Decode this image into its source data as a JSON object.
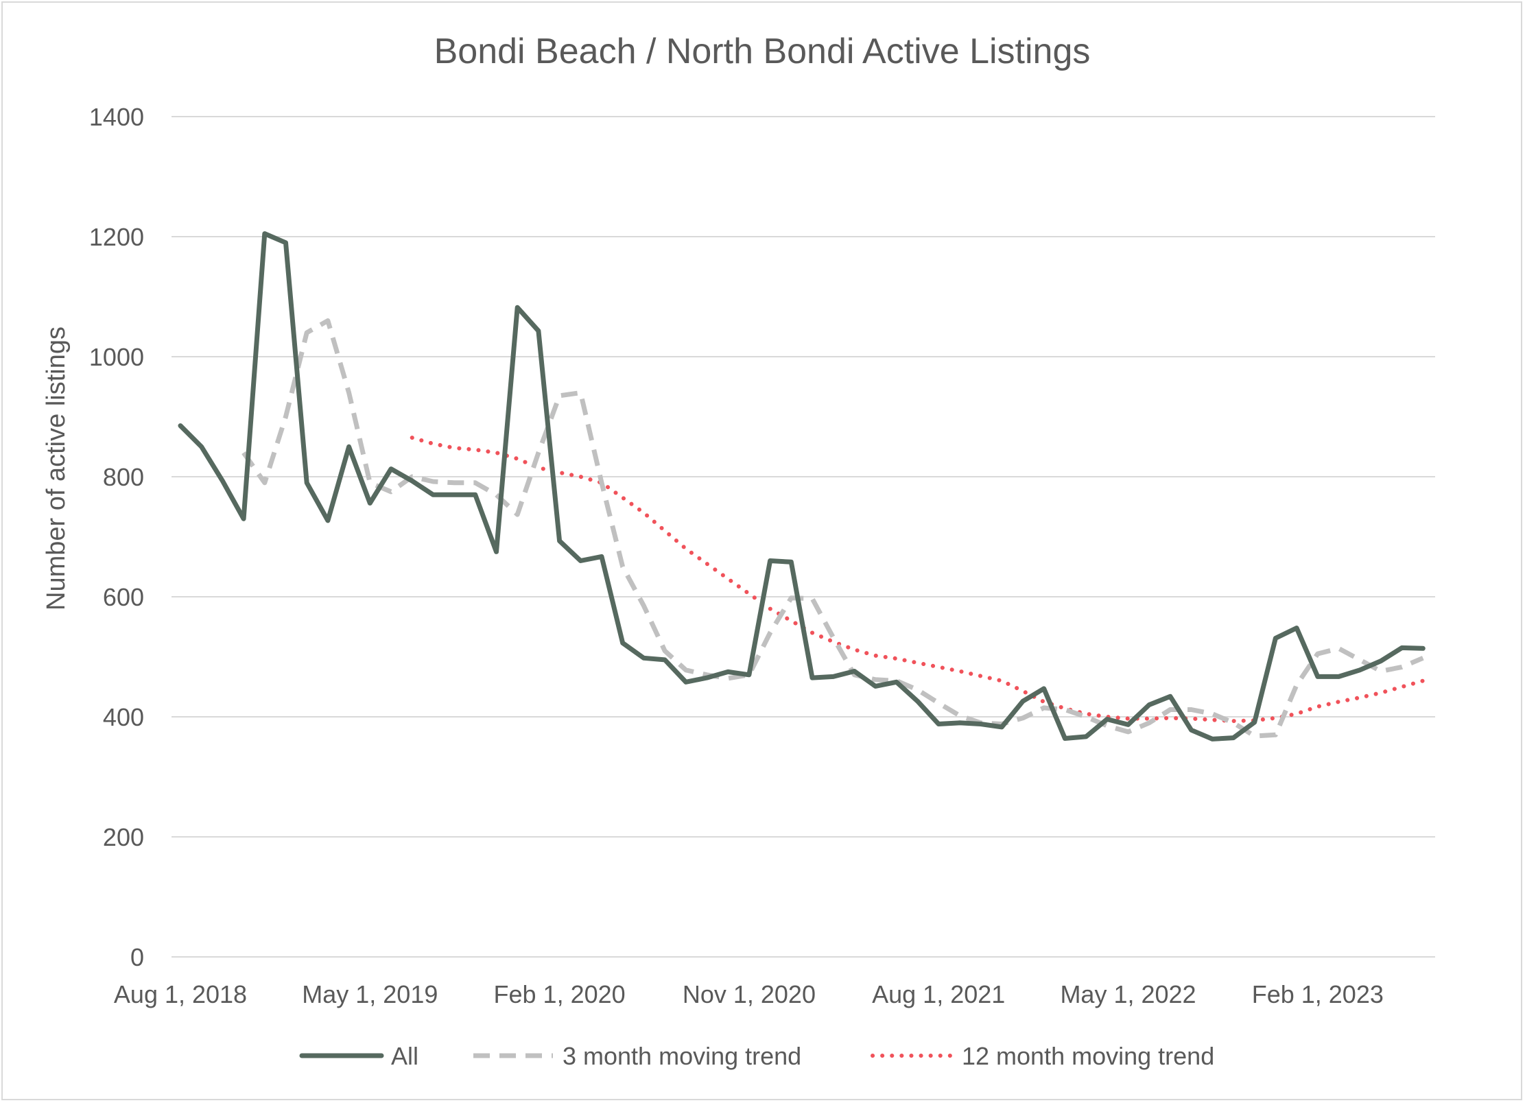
{
  "chart_data": {
    "type": "line",
    "title": "Bondi Beach / North Bondi Active Listings",
    "xlabel": "",
    "ylabel": "Number of active listings",
    "ylim": [
      0,
      1400
    ],
    "yticks": [
      0,
      200,
      400,
      600,
      800,
      1000,
      1200,
      1400
    ],
    "x_start": "Aug 1, 2018",
    "x_tick_labels": [
      "Aug 1, 2018",
      "May 1, 2019",
      "Feb 1, 2020",
      "Nov 1, 2020",
      "Aug 1, 2021",
      "May 1, 2022",
      "Feb 1, 2023"
    ],
    "grid": true,
    "legend_position": "bottom",
    "colors": {
      "All": "#56695f",
      "3 month moving trend": "#c0c0c0",
      "12 month moving trend": "#f0525a"
    },
    "series": [
      {
        "name": "All",
        "values": [
          885,
          850,
          793,
          730,
          1205,
          1190,
          790,
          727,
          850,
          756,
          813,
          793,
          770,
          770,
          770,
          675,
          1082,
          1043,
          693,
          660,
          667,
          523,
          498,
          495,
          458,
          465,
          475,
          470,
          660,
          658,
          465,
          467,
          476,
          451,
          458,
          426,
          388,
          390,
          388,
          383,
          426,
          447,
          364,
          367,
          396,
          387,
          420,
          434,
          378,
          363,
          365,
          391,
          531,
          548,
          467,
          467,
          478,
          493,
          515,
          514
        ]
      },
      {
        "name": "3 month moving trend",
        "values": [
          null,
          null,
          null,
          840,
          790,
          900,
          1040,
          1060,
          940,
          790,
          775,
          800,
          792,
          790,
          790,
          770,
          737,
          840,
          935,
          940,
          790,
          650,
          585,
          510,
          478,
          470,
          464,
          470,
          540,
          598,
          597,
          532,
          470,
          462,
          460,
          445,
          423,
          402,
          390,
          388,
          398,
          415,
          412,
          400,
          385,
          375,
          390,
          412,
          412,
          405,
          390,
          368,
          370,
          453,
          505,
          514,
          495,
          476,
          483,
          498
        ]
      },
      {
        "name": "12 month moving trend",
        "values": [
          null,
          null,
          null,
          null,
          null,
          null,
          null,
          null,
          null,
          null,
          null,
          865,
          855,
          848,
          845,
          840,
          830,
          815,
          807,
          800,
          790,
          765,
          740,
          710,
          680,
          655,
          630,
          605,
          580,
          560,
          540,
          525,
          512,
          502,
          497,
          490,
          483,
          476,
          468,
          460,
          443,
          425,
          414,
          405,
          400,
          397,
          397,
          398,
          397,
          395,
          393,
          394,
          398,
          405,
          417,
          425,
          432,
          440,
          450,
          460
        ]
      }
    ]
  }
}
